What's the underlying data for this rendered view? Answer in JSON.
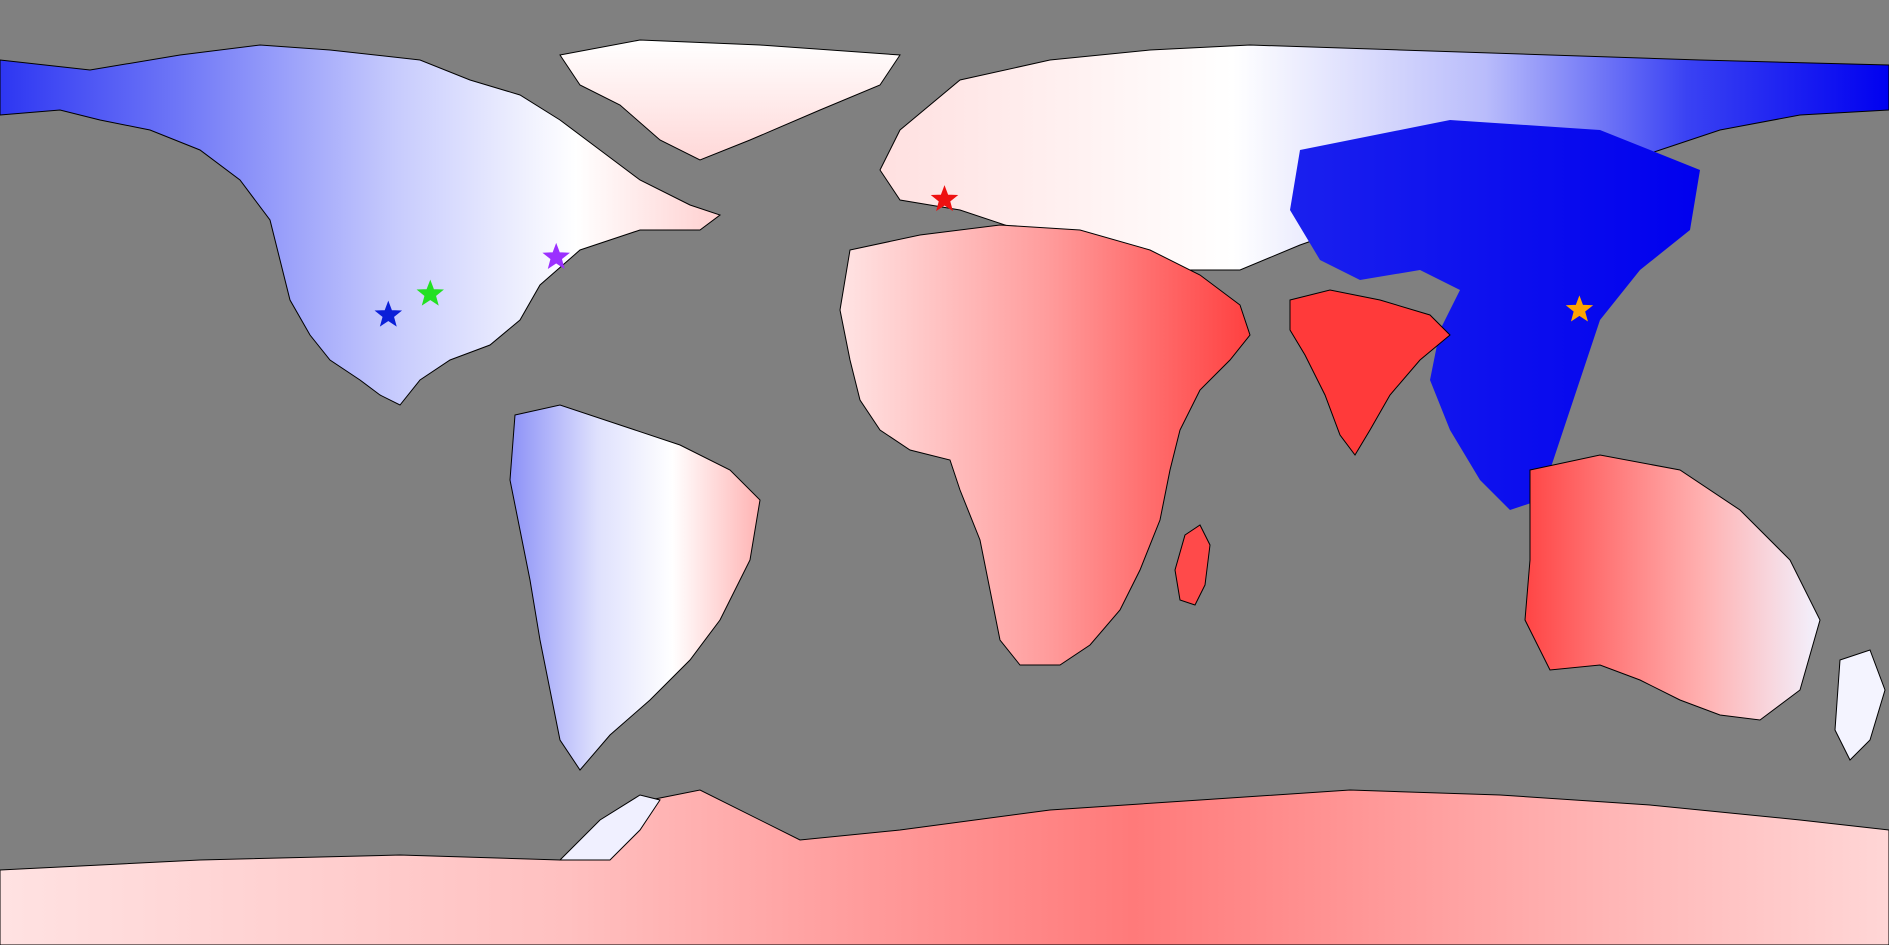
{
  "map": {
    "projection": "equirectangular",
    "ocean_color": "#808080",
    "coastline_color": "#000000",
    "color_scale": {
      "negative_color": "#0000ff",
      "neutral_color": "#ffffff",
      "positive_color": "#ff3333"
    },
    "markers": [
      {
        "name": "marker-blue-star",
        "color": "#0a1fd8",
        "lon": -106,
        "lat": 30
      },
      {
        "name": "marker-green-star",
        "color": "#22e022",
        "lon": -98,
        "lat": 34
      },
      {
        "name": "marker-purple-star",
        "color": "#9b30ff",
        "lon": -74,
        "lat": 41
      },
      {
        "name": "marker-red-star",
        "color": "#ee1111",
        "lon": 0,
        "lat": 52
      },
      {
        "name": "marker-orange-star",
        "color": "#ffa500",
        "lon": 121,
        "lat": 31
      }
    ]
  }
}
